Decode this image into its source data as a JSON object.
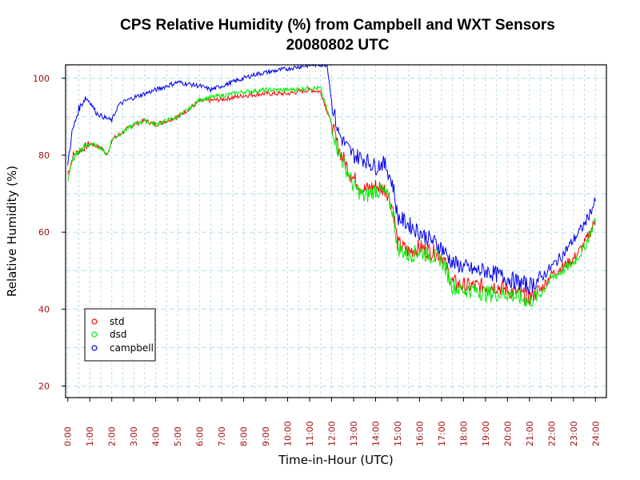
{
  "chart_data": {
    "type": "line",
    "title": "CPS Relative Humidity (%) from Campbell and WXT Sensors",
    "subtitle": "20080802  UTC",
    "xlabel": "Time-in-Hour (UTC)",
    "ylabel": "Relative Humidity (%)",
    "xlim": [
      -0.1,
      24.5
    ],
    "ylim": [
      17,
      103.5
    ],
    "x_ticks": [
      0,
      1,
      2,
      3,
      4,
      5,
      6,
      7,
      8,
      9,
      10,
      11,
      12,
      13,
      14,
      15,
      16,
      17,
      18,
      19,
      20,
      21,
      22,
      23,
      24
    ],
    "x_tick_labels": [
      "0:00",
      "1:00",
      "2:00",
      "3:00",
      "4:00",
      "5:00",
      "6:00",
      "7:00",
      "8:00",
      "9:00",
      "10:00",
      "11:00",
      "12:00",
      "13:00",
      "14:00",
      "15:00",
      "16:00",
      "17:00",
      "18:00",
      "19:00",
      "20:00",
      "21:00",
      "22:00",
      "23:00",
      "24:00"
    ],
    "y_ticks": [
      20,
      40,
      60,
      80,
      100
    ],
    "y_tick_labels": [
      "20",
      "40",
      "60",
      "80",
      "100"
    ],
    "grid": true,
    "legend_position": "bottom-left",
    "series": [
      {
        "name": "std",
        "color": "#ff0000",
        "x": [
          0,
          0.25,
          0.5,
          1,
          1.5,
          1.8,
          2,
          2.5,
          3,
          3.5,
          4,
          4.5,
          5,
          5.5,
          6,
          7,
          8,
          9,
          10,
          10.5,
          11,
          11.5,
          12,
          12.3,
          12.7,
          13,
          13.5,
          14,
          14.5,
          14.8,
          15,
          15.5,
          16,
          16.5,
          17,
          17.5,
          18,
          18.5,
          19,
          19.5,
          20,
          20.5,
          21,
          21.5,
          22,
          22.5,
          23,
          23.5,
          24
        ],
        "y": [
          75,
          80,
          81,
          83,
          82,
          80,
          84,
          86,
          88,
          89,
          88,
          89,
          90,
          92,
          94,
          94.5,
          95.5,
          96,
          96,
          96.5,
          97,
          96.5,
          88,
          82,
          77,
          74,
          71,
          72,
          71,
          66,
          57,
          55,
          56,
          55,
          54,
          47,
          46,
          46,
          46,
          46,
          45,
          44,
          43,
          45,
          49,
          51,
          53,
          57,
          63
        ]
      },
      {
        "name": "dsd",
        "color": "#00ee00",
        "x": [
          0,
          0.25,
          0.5,
          1,
          1.5,
          1.8,
          2,
          2.5,
          3,
          3.5,
          4,
          4.5,
          5,
          5.5,
          6,
          7,
          8,
          9,
          10,
          10.5,
          11,
          11.5,
          12,
          12.3,
          12.7,
          13,
          13.5,
          14,
          14.5,
          14.8,
          15,
          15.5,
          16,
          16.5,
          17,
          17.5,
          18,
          18.5,
          19,
          19.5,
          20,
          20.5,
          21,
          21.5,
          22,
          22.5,
          23,
          23.5,
          24
        ],
        "y": [
          74,
          79,
          81,
          83,
          82,
          80,
          84,
          86,
          88,
          89,
          88,
          89,
          90,
          92,
          94.5,
          95.5,
          96.5,
          97,
          97,
          97.2,
          97.5,
          97.3,
          88,
          81,
          76,
          72,
          69,
          71,
          70,
          65,
          56,
          54,
          55,
          54,
          53,
          46,
          45,
          45,
          44,
          44,
          44,
          43,
          42,
          44,
          48,
          50,
          52,
          56,
          63
        ]
      },
      {
        "name": "campbell",
        "color": "#0000ee",
        "x": [
          0,
          0.2,
          0.5,
          0.8,
          1,
          1.3,
          1.6,
          2,
          2.3,
          2.6,
          3,
          3.5,
          4,
          4.5,
          5,
          5.5,
          6,
          6.5,
          7,
          7.5,
          8,
          8.5,
          9,
          9.5,
          10,
          10.5,
          11,
          11.2,
          11.8,
          12,
          12.3,
          12.7,
          13,
          13.5,
          14,
          14.3,
          14.5,
          14.8,
          15,
          15.5,
          16,
          16.5,
          17,
          17.5,
          18,
          18.5,
          19,
          19.5,
          20,
          20.5,
          21,
          21.5,
          22,
          22.5,
          23,
          23.5,
          24
        ],
        "y": [
          78,
          86,
          92,
          95,
          94,
          91,
          90,
          89,
          93,
          94,
          95,
          96,
          97,
          98,
          99,
          98.5,
          98,
          97,
          98,
          99,
          100,
          101,
          101.5,
          102,
          102.5,
          103,
          103.4,
          103.5,
          103.5,
          94,
          86,
          82,
          80,
          79,
          77,
          78,
          77,
          72,
          64,
          62,
          60,
          58,
          56,
          52,
          51,
          50,
          50,
          49,
          48,
          47,
          46,
          48,
          51,
          54,
          58,
          62,
          68
        ]
      }
    ]
  }
}
